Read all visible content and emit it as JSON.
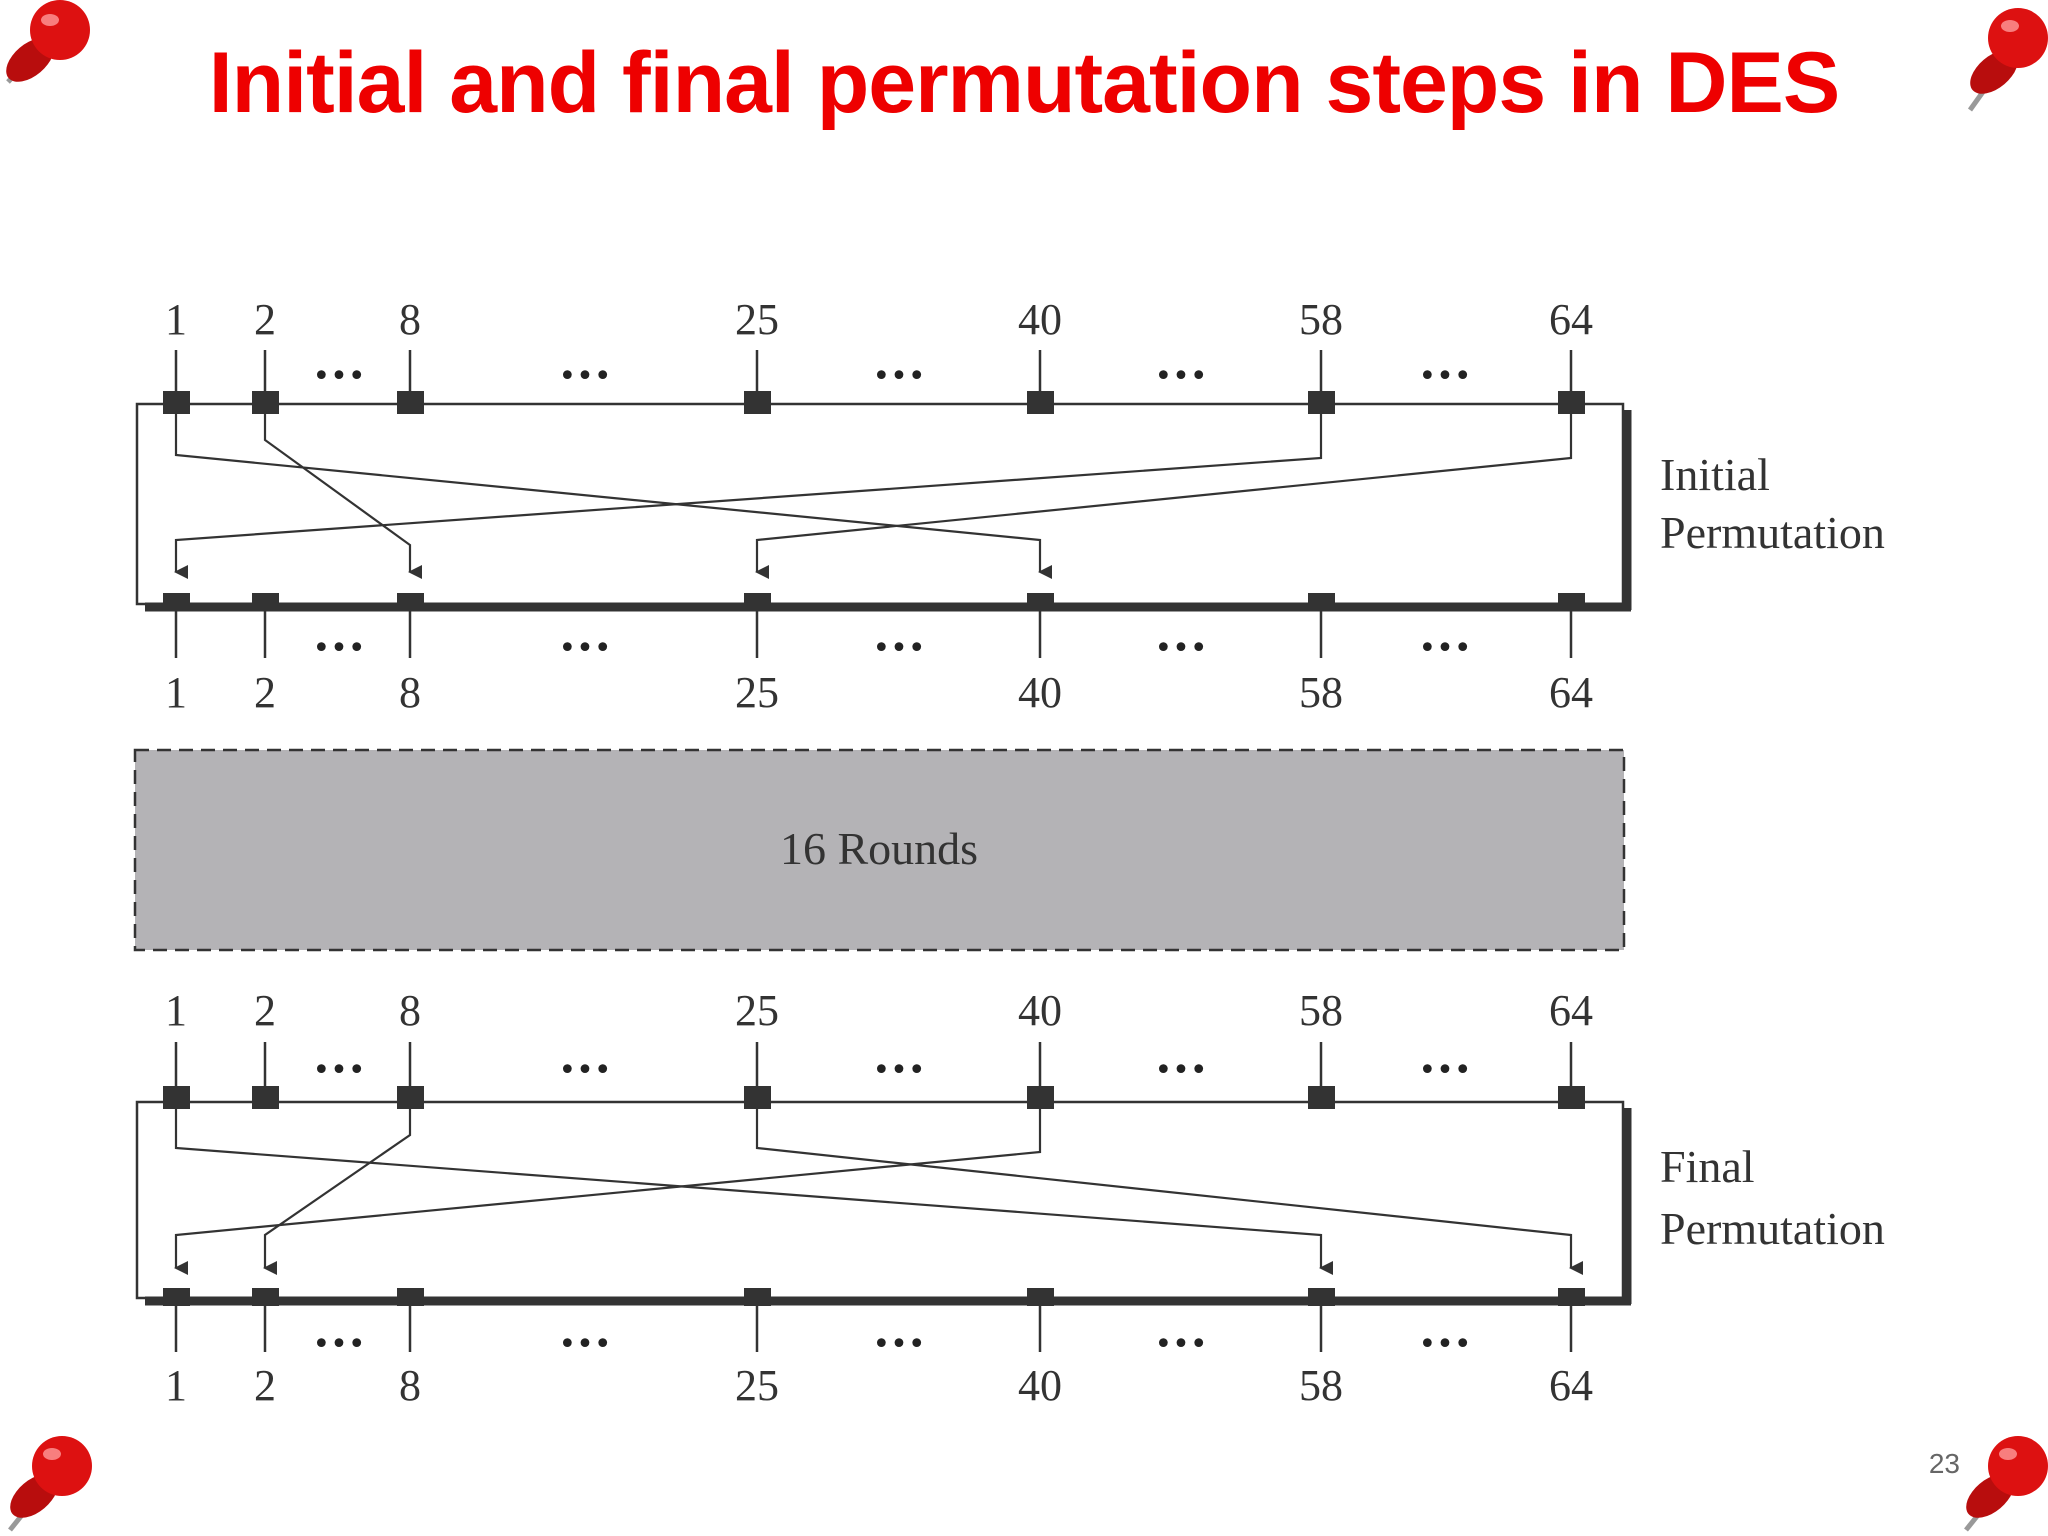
{
  "title": "Initial and final permutation steps in DES",
  "slide_number": "23",
  "positions": [
    "1",
    "2",
    "8",
    "25",
    "40",
    "58",
    "64"
  ],
  "ellipsis": "•••",
  "rounds_label": "16 Rounds",
  "initial_permutation": {
    "label_line1": "Initial",
    "label_line2": "Permutation",
    "mapping": [
      {
        "from": "1",
        "to": "40"
      },
      {
        "from": "2",
        "to": "8"
      },
      {
        "from": "58",
        "to": "1"
      },
      {
        "from": "64",
        "to": "25"
      }
    ]
  },
  "final_permutation": {
    "label_line1": "Final",
    "label_line2": "Permutation",
    "mapping": [
      {
        "from": "1",
        "to": "58"
      },
      {
        "from": "8",
        "to": "2"
      },
      {
        "from": "25",
        "to": "64"
      },
      {
        "from": "40",
        "to": "1"
      }
    ]
  },
  "colors": {
    "title": "#ee0000",
    "rounds_box": "#b4b3b6",
    "ink": "#333333",
    "pin": "#dd1111"
  }
}
